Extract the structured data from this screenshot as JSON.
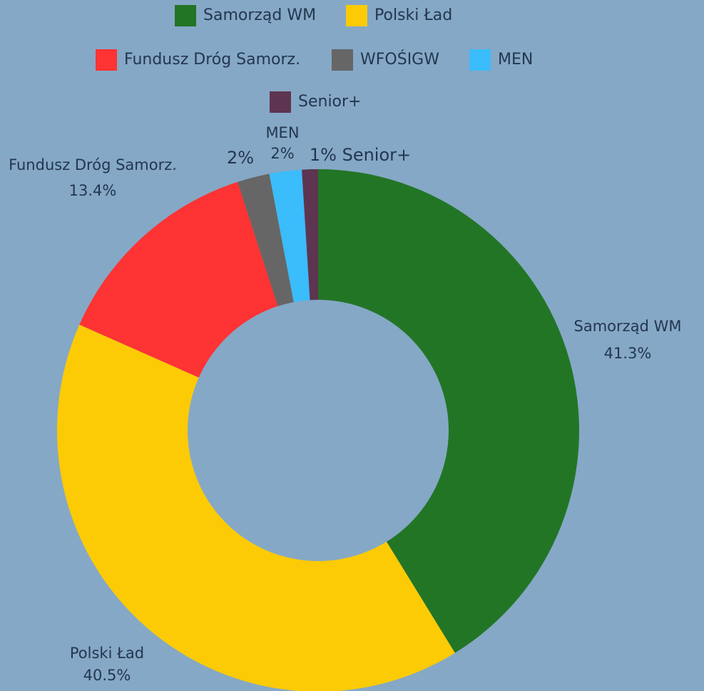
{
  "chart_data": {
    "type": "donut",
    "categories": [
      "Samorząd WM",
      "Polski Ład",
      "Fundusz Dróg Samorz.",
      "WFOŚIGW",
      "MEN",
      "Senior+"
    ],
    "values": [
      41.3,
      40.5,
      13.4,
      2,
      2,
      1
    ],
    "value_labels": [
      "41.3%",
      "40.5%",
      "13.4%",
      "2%",
      "2%",
      "1%"
    ],
    "colors": [
      "#237526",
      "#fccb05",
      "#fe3333",
      "#666666",
      "#3bbcfb",
      "#5e3550"
    ],
    "legend": "top"
  }
}
